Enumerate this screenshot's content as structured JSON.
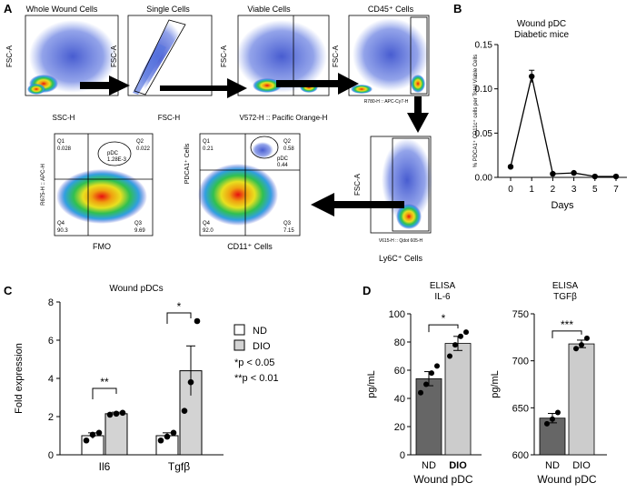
{
  "panels": {
    "A": {
      "letter": "A",
      "plot_titles": [
        "Whole Wound Cells",
        "Single Cells",
        "Viable Cells",
        "CD45⁺ Cells"
      ],
      "y_labels": [
        "FSC-A",
        "FSC-A",
        "FSC-A",
        "FSC-A"
      ],
      "x_labels": [
        "SSC-H",
        "FSC-H",
        "V572-H :: Pacific Orange-H",
        "R780-H :: APC-Cy7-H"
      ],
      "ly6c": {
        "y_label": "FSC-A",
        "x_label": "V615-H :: Qdot 605-H",
        "caption": "Ly6C⁺ Cells"
      },
      "fmo": {
        "y_label": "R675-H :: APC-H",
        "caption": "FMO",
        "q1": "Q1\n0.028",
        "q2": "Q2\n0.022",
        "q3": "Q3\n9.69",
        "q4": "Q4\n90.3",
        "gate": "pDC\n1.28E-3"
      },
      "cd11": {
        "y_label": "PDCA1⁺ Cells",
        "caption": "CD11⁺ Cells",
        "q1": "Q1\n0.21",
        "q2": "Q2\n0.58",
        "q3": "Q3\n7.15",
        "q4": "Q4\n92.0",
        "gate": "pDC\n0.44"
      }
    },
    "B": {
      "letter": "B",
      "title_line1": "Wound pDC",
      "title_line2": "Diabetic mice"
    },
    "C": {
      "letter": "C",
      "title": "Wound pDCs",
      "legend": {
        "nd": "ND",
        "dio": "DIO",
        "p1": "*p  < 0.05",
        "p2": "**p < 0.01"
      },
      "sig": [
        "**",
        "*"
      ]
    },
    "D": {
      "letter": "D",
      "left_title_line1": "ELISA",
      "left_title_line2": "IL-6",
      "right_title_line1": "ELISA",
      "right_title_line2": "TGFβ",
      "sig_left": "*",
      "sig_right": "***"
    }
  },
  "chart_data": [
    {
      "type": "line",
      "title": "Wound pDC Diabetic mice",
      "xlabel": "Days",
      "ylabel": "% PDCA1⁺ CD11c⁺ cells per Total Viable Cells",
      "x": [
        0,
        1,
        2,
        3,
        5,
        7
      ],
      "xticks": [
        "0",
        "1",
        "2",
        "3",
        "5",
        "7"
      ],
      "y": [
        0.012,
        0.114,
        0.004,
        0.005,
        0.001,
        0.001
      ],
      "err": [
        0.001,
        0.007,
        0.001,
        0.001,
        0.0005,
        0.0005
      ],
      "ylim": [
        0,
        0.15
      ],
      "yticks": [
        0.0,
        0.05,
        0.1,
        0.15
      ],
      "ytick_labels": [
        "0.00",
        "0.05",
        "0.10",
        "0.15"
      ],
      "grid": false,
      "color": "#000000"
    },
    {
      "type": "bar",
      "title": "Wound pDCs",
      "xlabel": "",
      "ylabel": "Fold expression",
      "categories": [
        "Il6",
        "Tgfβ"
      ],
      "series": [
        {
          "name": "ND",
          "values": [
            1.0,
            1.0
          ],
          "sem": [
            0.15,
            0.15
          ],
          "points": [
            [
              0.75,
              1.05,
              1.15
            ],
            [
              0.75,
              0.95,
              1.15
            ]
          ],
          "color": "#ffffff"
        },
        {
          "name": "DIO",
          "values": [
            2.15,
            4.4
          ],
          "sem": [
            0.08,
            1.3
          ],
          "points": [
            [
              2.1,
              2.15,
              2.2
            ],
            [
              2.3,
              3.8,
              7.0
            ]
          ],
          "color": "#d3d3d3"
        }
      ],
      "ylim": [
        0,
        8
      ],
      "yticks": [
        0,
        2,
        4,
        6,
        8
      ],
      "annotations": [
        "**",
        "*"
      ],
      "legend": "top-right"
    },
    {
      "type": "bar",
      "title": "ELISA IL-6",
      "xlabel": "Wound pDC",
      "ylabel": "pg/mL",
      "categories": [
        "ND",
        "DIO"
      ],
      "values": [
        54,
        79
      ],
      "sem": [
        5,
        5
      ],
      "points": [
        [
          44,
          50,
          58,
          63
        ],
        [
          70,
          78,
          84,
          87
        ]
      ],
      "colors": [
        "#666666",
        "#cccccc"
      ],
      "ylim": [
        0,
        100
      ],
      "yticks": [
        0,
        20,
        40,
        60,
        80,
        100
      ],
      "annotation": "*"
    },
    {
      "type": "bar",
      "title": "ELISA TGFβ",
      "xlabel": "Wound pDC",
      "ylabel": "pg/mL",
      "categories": [
        "ND",
        "DIO"
      ],
      "values": [
        639,
        718
      ],
      "sem": [
        5,
        4
      ],
      "points": [
        [
          633,
          638,
          645
        ],
        [
          713,
          717,
          724
        ]
      ],
      "colors": [
        "#666666",
        "#cccccc"
      ],
      "ylim": [
        600,
        750
      ],
      "yticks": [
        600,
        650,
        700,
        750
      ],
      "annotation": "***"
    }
  ]
}
